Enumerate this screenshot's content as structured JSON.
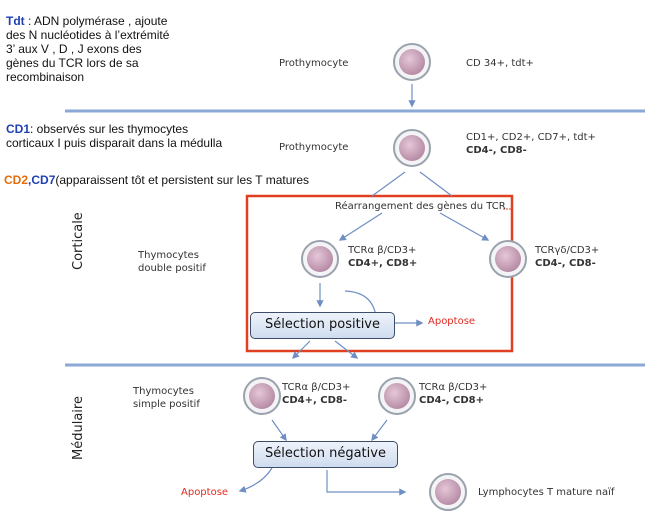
{
  "notes": {
    "tdt_title": "Tdt",
    "tdt_text": " : ADN polymérase , ajoute des N nucléotides à l’extrémité 3’ aux V ,  D , J exons  des gènes du TCR lors de sa recombinaison",
    "cd1_title": "CD1",
    "cd1_text": ": observés sur les thymocytes corticaux I puis disparait dans la médulla",
    "cd2_title": "CD2",
    "cd_sep": ",",
    "cd7_title": "CD7",
    "cd27_text": "(apparaissent tôt et persistent sur les T matures"
  },
  "zones": {
    "cortical": "Corticale",
    "medullary": "Médulaire"
  },
  "stages": {
    "prothymocyte_1": "Prothymocyte",
    "prothymocyte_1_markers": "CD 34+, tdt+",
    "prothymocyte_2": "Prothymocyte",
    "prothymocyte_2_markers": "CD1+, CD2+, CD7+, tdt+",
    "prothymocyte_2_markers_bold": "CD4-, CD8-",
    "rearrangement": "Réarrangement des gènes du TCR",
    "double_positive_l1": "Thymocytes",
    "double_positive_l2": "double positif",
    "tcr_ab_dp": "TCRα β/CD3+",
    "tcr_ab_dp_bold": "CD4+, CD8+",
    "tcr_gd": "TCRγδ/CD3+",
    "tcr_gd_bold": "CD4-, CD8-",
    "positive_selection": "Sélection positive",
    "apoptose_1": "Apoptose",
    "simple_positive_l1": "Thymocytes",
    "simple_positive_l2": "simple positif",
    "tcr_ab_sp4": "TCRα β/CD3+",
    "tcr_ab_sp4_bold": "CD4+, CD8-",
    "tcr_ab_sp8": "TCRα β/CD3+",
    "tcr_ab_sp8_bold": "CD4-, CD8+",
    "negative_selection": "Sélection négative",
    "apoptose_2": "Apoptose",
    "mature": "Lymphocytes  T mature naïf"
  },
  "colors": {
    "divider": "#8ca8d6",
    "arrow": "#6f8fc4",
    "highlight": "#e0401f",
    "cell_fill": "#c8a0b8",
    "cell_ring": "#9aa2ae"
  }
}
